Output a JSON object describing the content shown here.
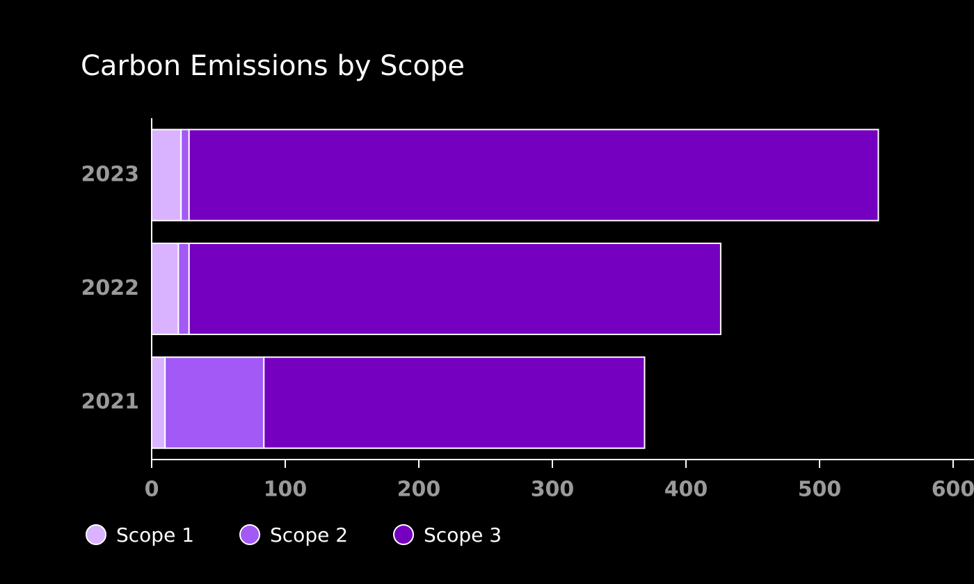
{
  "chart_data": {
    "type": "stacked-bar-horizontal",
    "title": "Carbon Emissions by Scope",
    "categories": [
      "2021",
      "2022",
      "2023"
    ],
    "series": [
      {
        "name": "Scope 1",
        "color": "#d9b3ff",
        "values": [
          10,
          20,
          22
        ]
      },
      {
        "name": "Scope 2",
        "color": "#a259f5",
        "values": [
          74,
          8,
          6
        ]
      },
      {
        "name": "Scope 3",
        "color": "#7500c0",
        "values": [
          285,
          398,
          516
        ]
      }
    ],
    "xlim": [
      0,
      600
    ],
    "xticks": [
      0,
      100,
      200,
      300,
      400,
      500,
      600
    ]
  }
}
